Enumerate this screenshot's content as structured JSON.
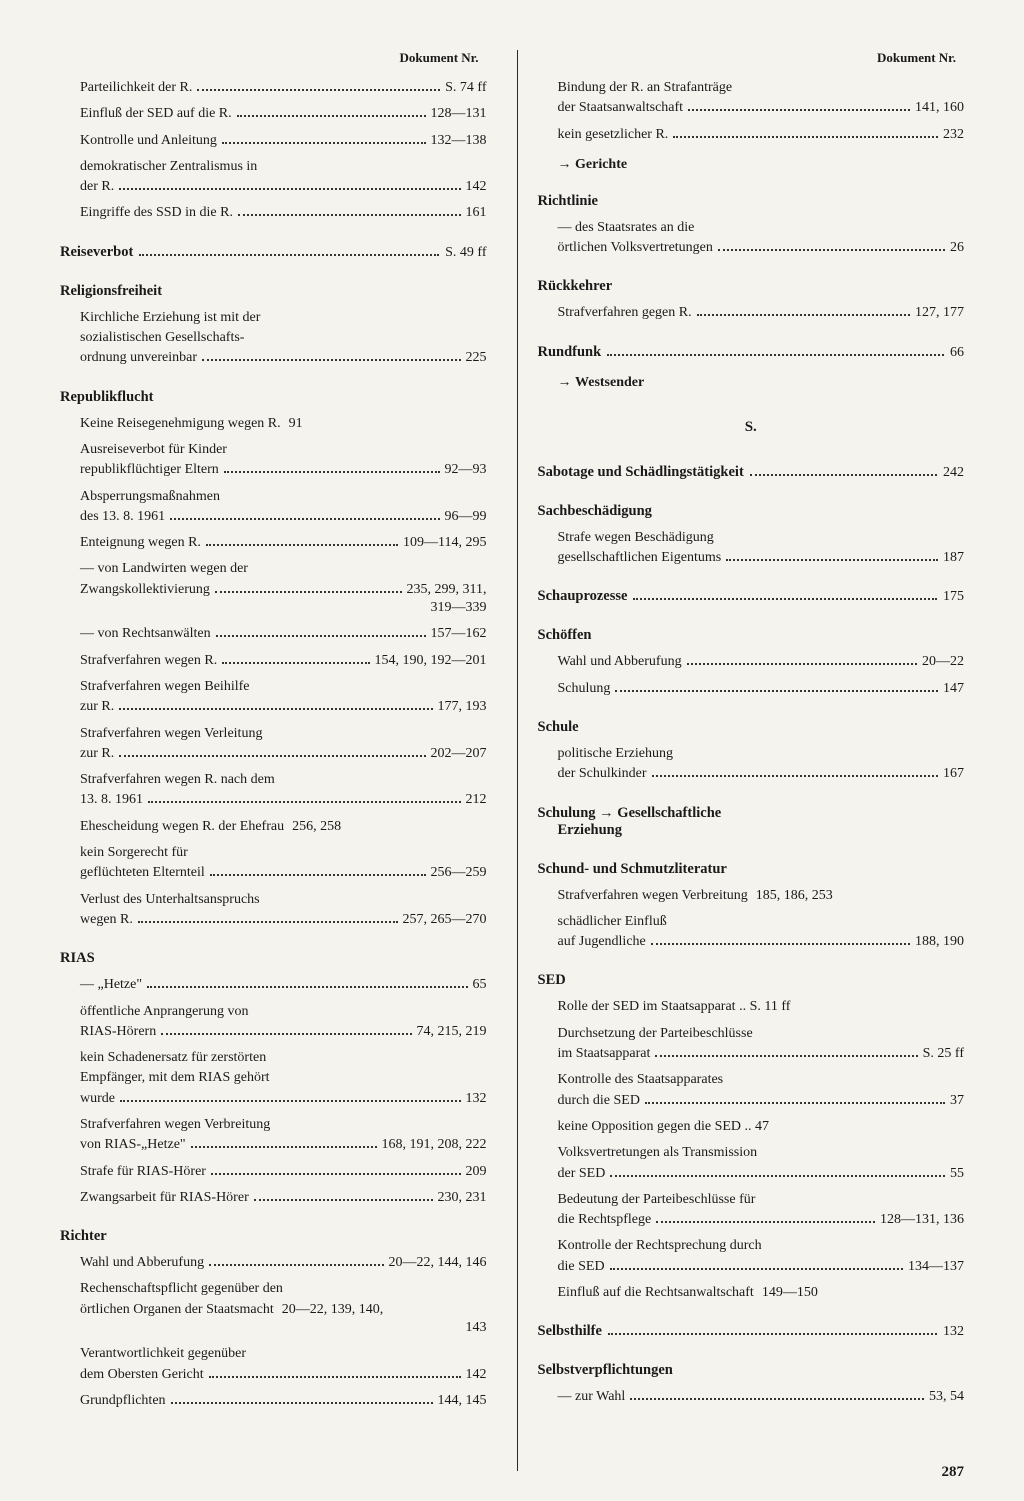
{
  "header": "Dokument Nr.",
  "page_number": "287",
  "section_letter": "S.",
  "arrow": "→",
  "left": {
    "top_entries": [
      {
        "pre": null,
        "last": "Parteilichkeit der R.",
        "ref": "S. 74 ff"
      },
      {
        "pre": null,
        "last": "Einfluß der SED auf die R.",
        "ref": "128—131"
      },
      {
        "pre": null,
        "last": "Kontrolle und Anleitung",
        "ref": "132—138"
      },
      {
        "pre": "demokratischer Zentralismus in",
        "last": "der R.",
        "ref": "142"
      },
      {
        "pre": null,
        "last": "Eingriffe des SSD in die R.",
        "ref": "161"
      }
    ],
    "reiseverbot": {
      "title": "Reiseverbot",
      "ref": "S. 49 ff"
    },
    "religionsfreiheit": {
      "title": "Religionsfreiheit",
      "entries": [
        {
          "pre": "Kirchliche Erziehung ist mit der\nsozialistischen Gesellschafts-",
          "last": "ordnung unvereinbar",
          "ref": "225"
        }
      ]
    },
    "republikflucht": {
      "title": "Republikflucht",
      "entries": [
        {
          "pre": null,
          "last": "Keine Reisegenehmigung wegen R.",
          "ref": "91",
          "nodots": true
        },
        {
          "pre": "Ausreiseverbot für Kinder",
          "last": "republikflüchtiger Eltern",
          "ref": "92—93"
        },
        {
          "pre": "Absperrungsmaßnahmen",
          "last": "des 13. 8. 1961",
          "ref": "96—99"
        },
        {
          "pre": null,
          "last": "Enteignung wegen R.",
          "ref": "109—114, 295"
        },
        {
          "pre": "— von Landwirten wegen der",
          "last": "Zwangskollektivierung",
          "ref": "235, 299, 311,",
          "cont": "319—339"
        },
        {
          "pre": null,
          "last": "— von Rechtsanwälten",
          "ref": "157—162"
        },
        {
          "pre": null,
          "last": "Strafverfahren wegen R.",
          "ref": "154, 190, 192—201"
        },
        {
          "pre": "Strafverfahren wegen Beihilfe",
          "last": "zur R.",
          "ref": "177, 193"
        },
        {
          "pre": "Strafverfahren wegen Verleitung",
          "last": "zur R.",
          "ref": "202—207"
        },
        {
          "pre": "Strafverfahren wegen R. nach dem",
          "last": "13. 8. 1961",
          "ref": "212"
        },
        {
          "pre": null,
          "last": "Ehescheidung wegen R. der Ehefrau",
          "ref": "256, 258",
          "nodots": true
        },
        {
          "pre": "kein Sorgerecht für",
          "last": "geflüchteten Elternteil",
          "ref": "256—259"
        },
        {
          "pre": "Verlust des Unterhaltsanspruchs",
          "last": "wegen R.",
          "ref": "257, 265—270"
        }
      ]
    },
    "rias": {
      "title": "RIAS",
      "entries": [
        {
          "pre": null,
          "last": "— „Hetze\"",
          "ref": "65"
        },
        {
          "pre": "öffentliche Anprangerung von",
          "last": "RIAS-Hörern",
          "ref": "74, 215, 219"
        },
        {
          "pre": "kein Schadenersatz für zerstörten\nEmpfänger, mit dem RIAS gehört",
          "last": "wurde",
          "ref": "132"
        },
        {
          "pre": "Strafverfahren wegen Verbreitung",
          "last": "von RIAS-„Hetze\"",
          "ref": "168, 191, 208, 222"
        },
        {
          "pre": null,
          "last": "Strafe für RIAS-Hörer",
          "ref": "209"
        },
        {
          "pre": null,
          "last": "Zwangsarbeit für RIAS-Hörer",
          "ref": "230, 231"
        }
      ]
    },
    "richter": {
      "title": "Richter",
      "entries": [
        {
          "pre": null,
          "last": "Wahl und Abberufung",
          "ref": "20—22, 144, 146"
        },
        {
          "pre": "Rechenschaftspflicht gegenüber den",
          "last": "örtlichen Organen der Staatsmacht",
          "ref": "20—22, 139, 140,",
          "cont": "143",
          "nodots": true
        },
        {
          "pre": "Verantwortlichkeit gegenüber",
          "last": "dem Obersten Gericht",
          "ref": "142"
        },
        {
          "pre": null,
          "last": "Grundpflichten",
          "ref": "144, 145"
        }
      ]
    }
  },
  "right": {
    "top_entries": [
      {
        "pre": "Bindung der R. an Strafanträge",
        "last": "der Staatsanwaltschaft",
        "ref": "141, 160"
      },
      {
        "pre": null,
        "last": "kein gesetzlicher R.",
        "ref": "232"
      }
    ],
    "xref_gerichte": "Gerichte",
    "richtlinie": {
      "title": "Richtlinie",
      "entries": [
        {
          "pre": "— des Staatsrates an die",
          "last": "örtlichen Volksvertretungen",
          "ref": "26"
        }
      ]
    },
    "rueckkehrer": {
      "title": "Rückkehrer",
      "entries": [
        {
          "pre": null,
          "last": "Strafverfahren gegen R.",
          "ref": "127, 177"
        }
      ]
    },
    "rundfunk": {
      "title": "Rundfunk",
      "ref": "66"
    },
    "xref_westsender": "Westsender",
    "sabotage": {
      "title": "Sabotage und Schädlingstätigkeit",
      "ref": "242"
    },
    "sachbeschaedigung": {
      "title": "Sachbeschädigung",
      "entries": [
        {
          "pre": "Strafe wegen Beschädigung",
          "last": "gesellschaftlichen Eigentums",
          "ref": "187"
        }
      ]
    },
    "schauprozesse": {
      "title": "Schauprozesse",
      "ref": "175"
    },
    "schoeffen": {
      "title": "Schöffen",
      "entries": [
        {
          "pre": null,
          "last": "Wahl und Abberufung",
          "ref": "20—22"
        },
        {
          "pre": null,
          "last": "Schulung",
          "ref": "147"
        }
      ]
    },
    "schule": {
      "title": "Schule",
      "entries": [
        {
          "pre": "politische Erziehung",
          "last": "der Schulkinder",
          "ref": "167"
        }
      ]
    },
    "schulung": {
      "title_a": "Schulung",
      "title_b": "Gesellschaftliche",
      "title_c": "Erziehung"
    },
    "schund": {
      "title": "Schund- und Schmutzliteratur",
      "entries": [
        {
          "pre": null,
          "last": "Strafverfahren wegen Verbreitung",
          "ref": "185, 186, 253",
          "nodots": true
        },
        {
          "pre": "schädlicher Einfluß",
          "last": "auf Jugendliche",
          "ref": "188, 190"
        }
      ]
    },
    "sed": {
      "title": "SED",
      "entries": [
        {
          "pre": null,
          "last": "Rolle der SED im Staatsapparat",
          "ref": "S. 11 ff",
          "shortdots": true
        },
        {
          "pre": "Durchsetzung der Parteibeschlüsse",
          "last": "im Staatsapparat",
          "ref": "S. 25 ff"
        },
        {
          "pre": "Kontrolle des Staatsapparates",
          "last": "durch die SED",
          "ref": "37"
        },
        {
          "pre": null,
          "last": "keine Opposition gegen die SED",
          "ref": "47",
          "shortdots": true
        },
        {
          "pre": "Volksvertretungen als Transmission",
          "last": "der SED",
          "ref": "55"
        },
        {
          "pre": "Bedeutung der Parteibeschlüsse für",
          "last": "die Rechtspflege",
          "ref": "128—131, 136"
        },
        {
          "pre": "Kontrolle der Rechtsprechung durch",
          "last": "die SED",
          "ref": "134—137"
        },
        {
          "pre": null,
          "last": "Einfluß auf die Rechtsanwaltschaft",
          "ref": "149—150",
          "nodots": true
        }
      ]
    },
    "selbsthilfe": {
      "title": "Selbsthilfe",
      "ref": "132"
    },
    "selbstverpflichtungen": {
      "title": "Selbstverpflichtungen",
      "entries": [
        {
          "pre": null,
          "last": "— zur Wahl",
          "ref": "53, 54"
        }
      ]
    }
  }
}
